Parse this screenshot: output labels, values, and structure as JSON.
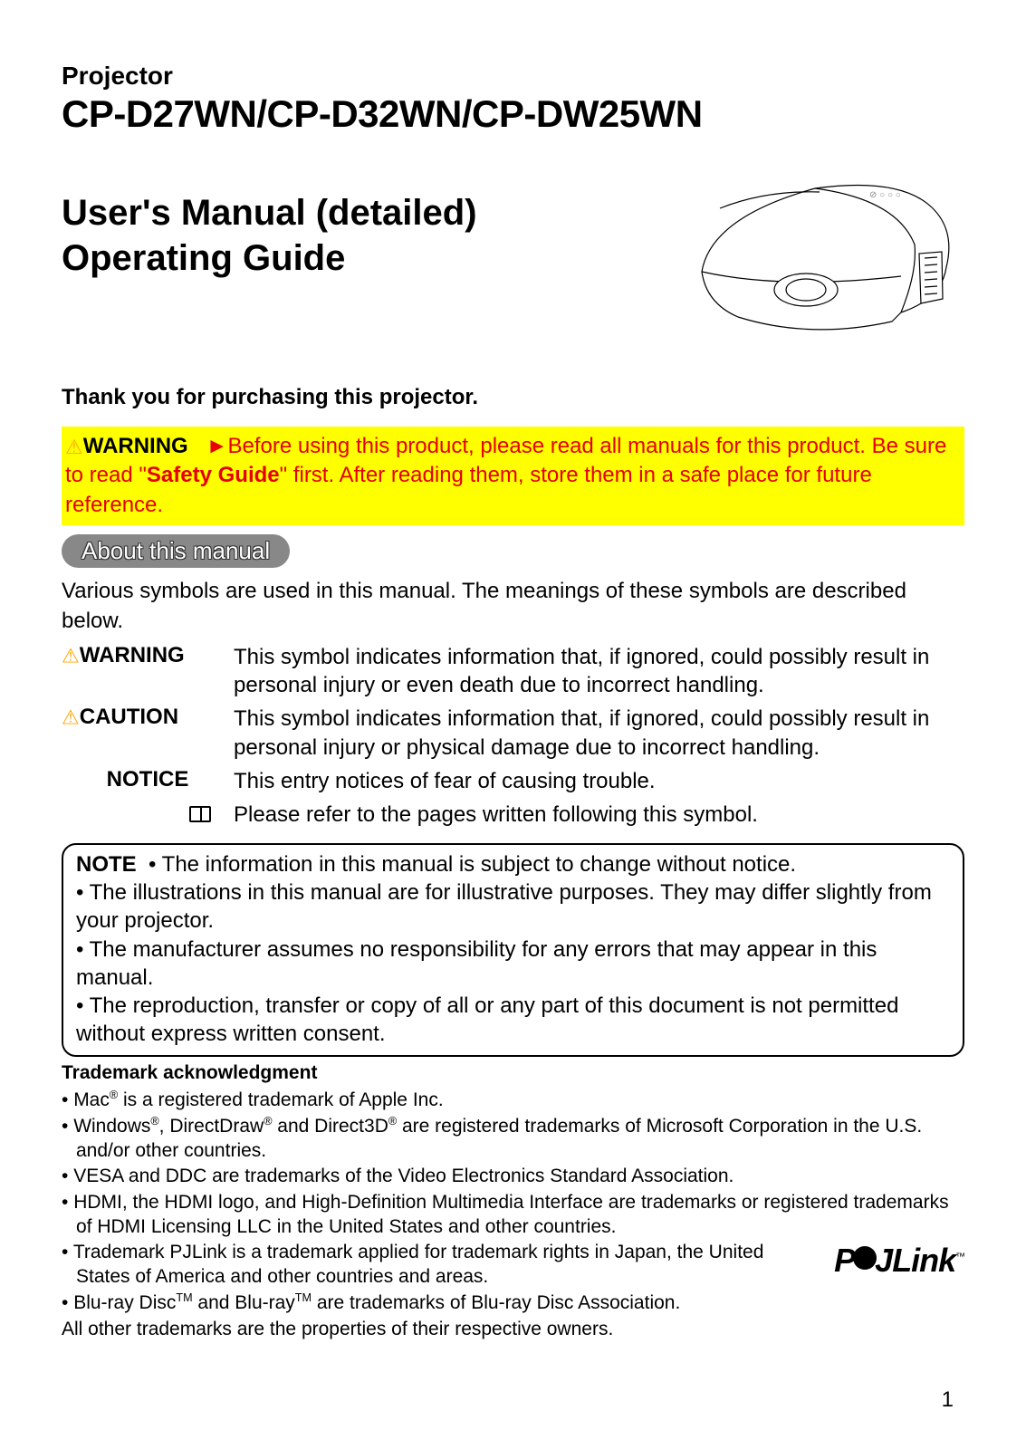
{
  "header": {
    "category": "Projector",
    "model": "CP-D27WN/CP-D32WN/CP-DW25WN",
    "title1": "User's Manual (detailed)",
    "title2": "Operating Guide"
  },
  "thanks": "Thank you for purchasing this projector.",
  "warning_box": {
    "label": "WARNING",
    "arrow": "►",
    "text_before": "Before using this product, please read all manuals for this product. Be sure to read \"",
    "bold": "Safety Guide",
    "text_after": "\" first. After reading them, store them in a safe place for future reference.",
    "bg_color": "#ffff00",
    "text_color": "#e60000"
  },
  "section": {
    "label": "About this manual",
    "intro": "Various symbols are used in this manual. The meanings of these symbols are described below."
  },
  "symbols": [
    {
      "icon": "⚠",
      "icon_color": "#ffa500",
      "label": "WARNING",
      "desc": "This symbol indicates information that, if ignored, could possibly result in personal injury or even death due to incorrect handling."
    },
    {
      "icon": "⚠",
      "icon_color": "#ffa500",
      "label": "CAUTION",
      "desc": "This symbol indicates information that, if ignored, could possibly result in personal injury or physical damage due to incorrect handling."
    },
    {
      "icon": "",
      "icon_color": "",
      "label": "NOTICE",
      "desc": "This entry notices of fear of causing trouble."
    },
    {
      "icon": "book",
      "icon_color": "",
      "label": "",
      "desc": "Please refer to the pages written following this symbol."
    }
  ],
  "note_box": {
    "label": "NOTE",
    "items": [
      "The information in this manual is subject to change without notice.",
      "The illustrations in this manual are for illustrative purposes. They may differ slightly from your projector.",
      "The manufacturer assumes no responsibility for any errors that may appear in this manual.",
      "The reproduction, transfer or copy of all or any part of this document is not permitted without express written consent."
    ]
  },
  "trademark": {
    "heading": "Trademark acknowledgment",
    "items": [
      {
        "html": "Mac<sup>®</sup> is a registered trademark of Apple Inc."
      },
      {
        "html": "Windows<sup>®</sup>, DirectDraw<sup>®</sup> and Direct3D<sup>®</sup> are registered trademarks of Microsoft Corporation in the U.S. and/or other countries."
      },
      {
        "html": "VESA and DDC are trademarks of the Video Electronics Standard Association."
      },
      {
        "html": "HDMI, the HDMI logo, and High-Definition Multimedia Interface are trademarks or registered trademarks of HDMI Licensing LLC in the United States and other countries."
      },
      {
        "html": "Trademark PJLink is a trademark applied for trademark rights in Japan, the United States of America and other countries and areas.",
        "pjlink": true
      },
      {
        "html": "Blu-ray Disc<sup>TM</sup> and Blu-ray<sup>TM</sup> are trademarks of Blu-ray Disc Association."
      }
    ],
    "final": "All other trademarks are the properties of their respective owners.",
    "pjlink_logo": "PJLink"
  },
  "page_number": "1",
  "colors": {
    "warning_bg": "#ffff00",
    "warning_text": "#e60000",
    "pill_bg": "#888888",
    "pill_text": "#ffffff"
  }
}
